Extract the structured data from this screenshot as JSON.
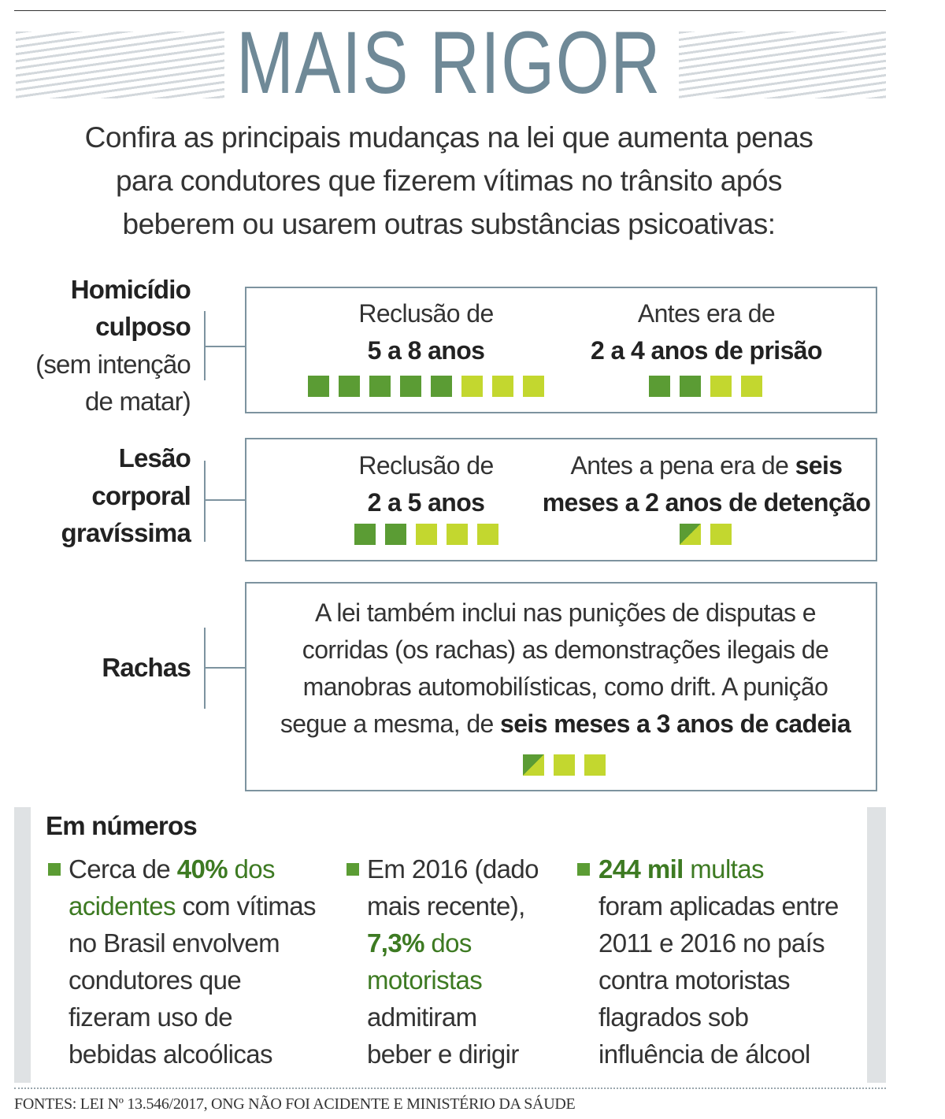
{
  "header": {
    "title": "MAIS RIGOR",
    "subtitle": [
      "Confira as principais mudanças na lei que aumenta penas",
      "para condutores que fizerem vítimas no trânsito após",
      "beberem ou usarem outras substâncias psicoativas:"
    ]
  },
  "sections": [
    {
      "label": [
        "Homicídio",
        "culposo"
      ],
      "note": [
        "(sem intenção",
        "de matar)"
      ],
      "new": [
        "Reclusão de",
        "5 a 8 anos"
      ],
      "old": [
        "Antes era de",
        "2 a 4 anos de prisão"
      ]
    },
    {
      "label": [
        "Lesão",
        "corporal",
        "gravíssima"
      ],
      "new": [
        "Reclusão de",
        "2 a 5 anos"
      ],
      "old": [
        "Antes a pena era de",
        "seis",
        "meses a 2 anos de detenção"
      ]
    },
    {
      "label": [
        "Rachas"
      ],
      "text": [
        "A lei também inclui nas punições de disputas e",
        "corridas (os rachas) as demonstrações ilegais de",
        "manobras automobilísticas, como drift. A punição",
        "segue a mesma, de",
        "seis meses a 3 anos de cadeia"
      ]
    }
  ],
  "numbers": {
    "title": "Em números",
    "items": [
      {
        "lines": [
          [
            "Cerca de",
            "40%",
            "dos"
          ],
          [
            "acidentes",
            "com vítimas"
          ],
          [
            "no Brasil envolvem"
          ],
          [
            "condutores que"
          ],
          [
            "fizeram uso de"
          ],
          [
            "bebidas alcoólicas"
          ]
        ]
      },
      {
        "lines": [
          [
            "Em 2016 (dado"
          ],
          [
            "mais recente),"
          ],
          [
            "7,3%",
            "dos"
          ],
          [
            "motoristas"
          ],
          [
            "admitiram"
          ],
          [
            "beber e dirigir"
          ]
        ]
      },
      {
        "lines": [
          [
            "244 mil",
            "multas"
          ],
          [
            "foram aplicadas entre"
          ],
          [
            "2011 e 2016 no país"
          ],
          [
            "contra motoristas"
          ],
          [
            "flagrados sob"
          ],
          [
            "influência de álcool"
          ]
        ]
      }
    ]
  },
  "footer": {
    "source": "FONTES: LEI Nº 13.546/2017, ONG NÃO FOI ACIDENTE E MINISTÉRIO DA SÁUDE"
  }
}
